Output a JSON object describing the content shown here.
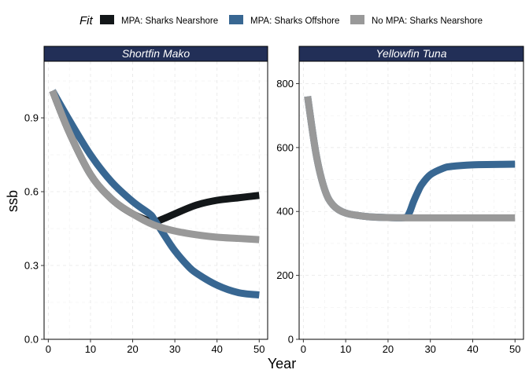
{
  "chart_data": {
    "type": "line",
    "legend": {
      "title": "Fit",
      "position": "top",
      "entries": [
        {
          "name": "MPA: Sharks Nearshore",
          "color": "#131719"
        },
        {
          "name": "MPA: Sharks Offshore",
          "color": "#386792"
        },
        {
          "name": "No MPA: Sharks Nearshore",
          "color": "#999999"
        }
      ]
    },
    "xlabel": "Year",
    "ylabel": "ssb",
    "grid": true,
    "strip_color": "#222f57",
    "panels": [
      {
        "title": "Shortfin Mako",
        "xlim": [
          -1,
          52
        ],
        "ylim": [
          0,
          1.13
        ],
        "xticks": [
          0,
          10,
          20,
          30,
          40,
          50
        ],
        "yticks": [
          0.0,
          0.3,
          0.6,
          0.9
        ],
        "ytick_labels": [
          "0.0",
          "0.3",
          "0.6",
          "0.9"
        ],
        "series": [
          {
            "name": "MPA: Sharks Nearshore",
            "x": [
              1,
              5,
              10,
              15,
              20,
              24,
              25,
              28,
              30,
              35,
              40,
              45,
              50
            ],
            "y": [
              1.01,
              0.84,
              0.67,
              0.57,
              0.51,
              0.48,
              0.475,
              0.495,
              0.51,
              0.545,
              0.565,
              0.575,
              0.585
            ]
          },
          {
            "name": "MPA: Sharks Offshore",
            "x": [
              1,
              5,
              10,
              15,
              20,
              24,
              25,
              28,
              30,
              33,
              35,
              40,
              45,
              50
            ],
            "y": [
              1.01,
              0.89,
              0.75,
              0.64,
              0.56,
              0.51,
              0.49,
              0.41,
              0.36,
              0.3,
              0.27,
              0.22,
              0.19,
              0.18
            ]
          },
          {
            "name": "No MPA: Sharks Nearshore",
            "x": [
              1,
              5,
              10,
              15,
              20,
              25,
              30,
              35,
              40,
              45,
              50
            ],
            "y": [
              1.01,
              0.84,
              0.67,
              0.57,
              0.51,
              0.465,
              0.44,
              0.425,
              0.415,
              0.41,
              0.405
            ]
          }
        ]
      },
      {
        "title": "Yellowfin Tuna",
        "xlim": [
          -1,
          52
        ],
        "ylim": [
          0,
          870
        ],
        "xticks": [
          0,
          10,
          20,
          30,
          40,
          50
        ],
        "yticks": [
          0,
          200,
          400,
          600,
          800
        ],
        "ytick_labels": [
          "0",
          "200",
          "400",
          "600",
          "800"
        ],
        "series": [
          {
            "name": "MPA: Sharks Offshore",
            "x": [
              1,
              3,
              5,
              7,
              10,
              15,
              20,
              24,
              25,
              26,
              27,
              28,
              30,
              33,
              35,
              40,
              45,
              50
            ],
            "y": [
              760,
              580,
              470,
              420,
              395,
              384,
              381,
              381,
              395,
              430,
              460,
              485,
              515,
              535,
              541,
              546,
              547,
              548
            ]
          },
          {
            "name": "No MPA: Sharks Nearshore",
            "x": [
              1,
              3,
              5,
              7,
              10,
              15,
              20,
              25,
              30,
              35,
              40,
              45,
              50
            ],
            "y": [
              760,
              580,
              470,
              420,
              395,
              384,
              381,
              380,
              380,
              380,
              380,
              380,
              380
            ]
          }
        ]
      }
    ]
  }
}
